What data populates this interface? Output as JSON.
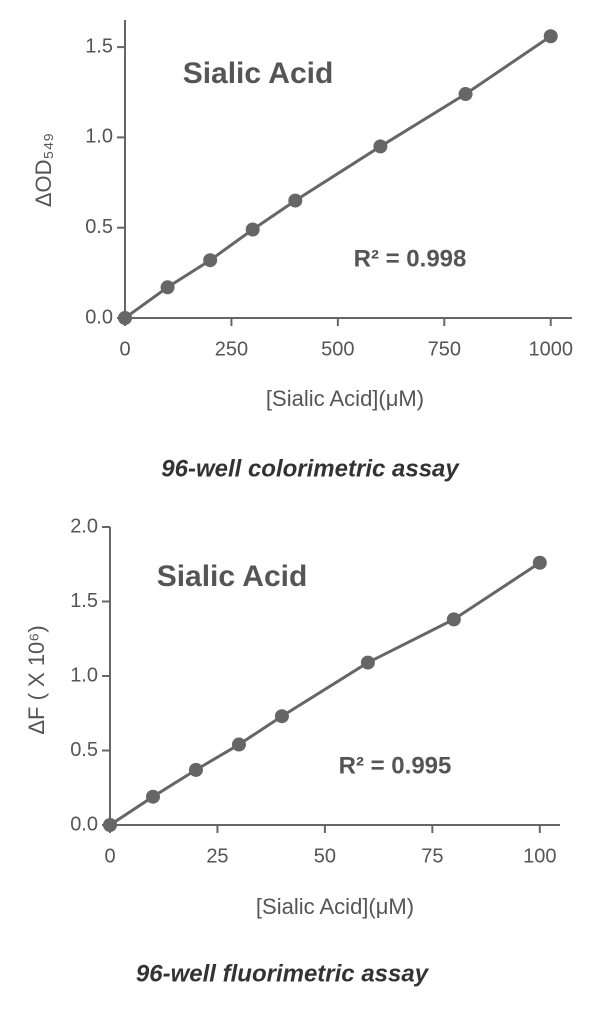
{
  "chart_data": [
    {
      "type": "scatter",
      "x_label": "[Sialic Acid](μM)",
      "y_label": "ΔOD₅₄₉",
      "annotations": [
        "Sialic Acid",
        "R² = 0.998"
      ],
      "caption": "96-well colorimetric assay",
      "x": [
        0,
        100,
        200,
        300,
        400,
        600,
        800,
        1000
      ],
      "series": [
        {
          "name": "Sialic Acid",
          "color": "#666666",
          "values": [
            0,
            0.17,
            0.32,
            0.49,
            0.65,
            0.95,
            1.24,
            1.56
          ]
        }
      ],
      "xlim": [
        0,
        1050
      ],
      "ylim": [
        0,
        1.65
      ],
      "xticks": [
        0,
        250,
        500,
        750,
        1000
      ],
      "yticks": [
        {
          "value": 0,
          "label": "0.0"
        },
        0.5,
        {
          "value": 1,
          "label": "1.0"
        },
        1.5
      ]
    },
    {
      "type": "scatter",
      "x_label": "[Sialic Acid](μM)",
      "y_label": "ΔF ( X 10⁶)",
      "annotations": [
        "Sialic Acid",
        "R² = 0.995"
      ],
      "caption": "96-well fluorimetric assay",
      "x": [
        0,
        10,
        20,
        30,
        40,
        60,
        80,
        100
      ],
      "series": [
        {
          "name": "Sialic Acid",
          "color": "#666666",
          "values": [
            0,
            0.19,
            0.37,
            0.54,
            0.73,
            1.09,
            1.38,
            1.76
          ]
        }
      ],
      "xlim": [
        0,
        104.7
      ],
      "ylim": [
        0,
        2
      ],
      "xticks": [
        0,
        25,
        50,
        75,
        100
      ],
      "yticks": [
        {
          "value": 0,
          "label": "0.0"
        },
        0.5,
        {
          "value": 1,
          "label": "1.0"
        },
        1.5,
        {
          "value": 2,
          "label": "2.0"
        }
      ]
    }
  ]
}
